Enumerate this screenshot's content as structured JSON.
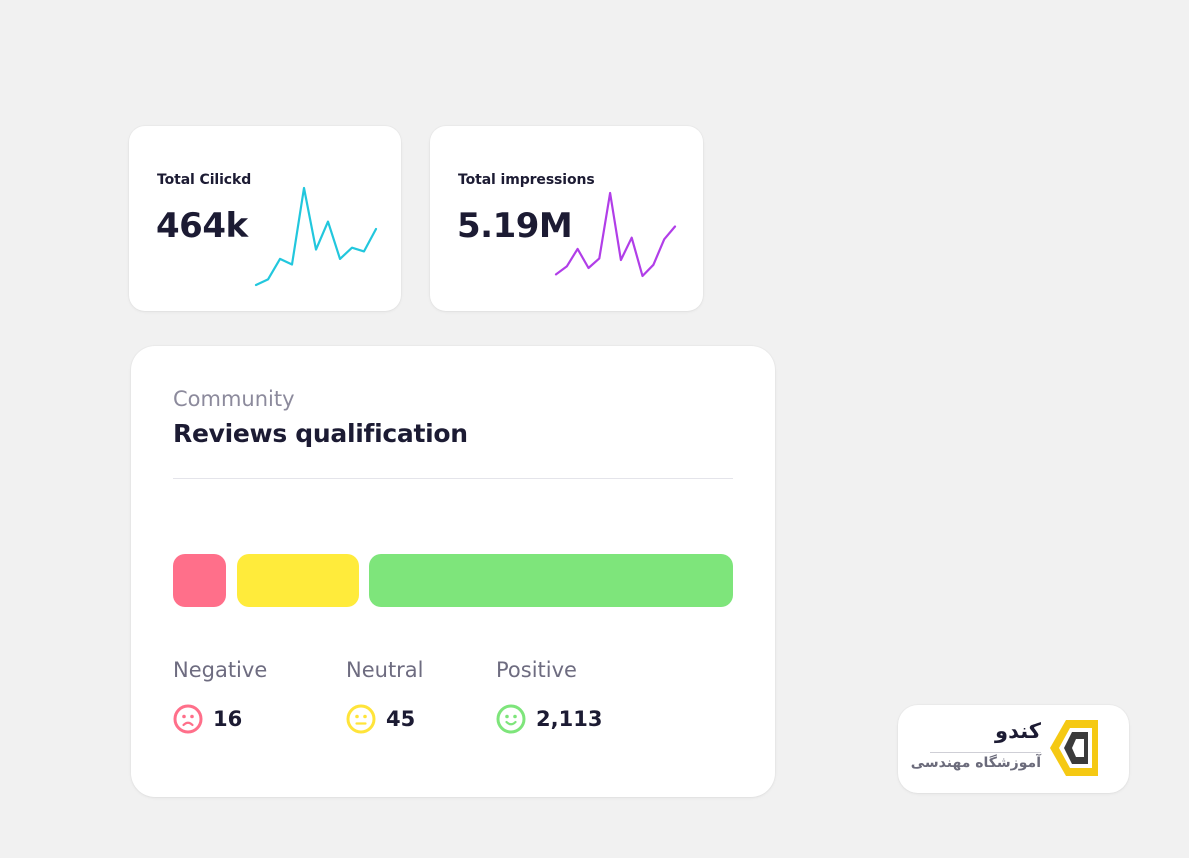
{
  "stats": {
    "clicks": {
      "label": "Total Cilickd",
      "value": "464k",
      "color": "#22c7dd",
      "sparkline": [
        4,
        7,
        18,
        15,
        56,
        23,
        38,
        18,
        24,
        22,
        34
      ]
    },
    "impressions": {
      "label": "Total impressions",
      "value": "5.19M",
      "color": "#b13ee8",
      "sparkline": [
        4,
        9,
        20,
        8,
        14,
        55,
        13,
        27,
        3,
        10,
        26,
        34
      ]
    }
  },
  "reviews": {
    "eyebrow": "Community",
    "title": "Reviews qualification",
    "segments": [
      {
        "key": "negative",
        "label": "Negative",
        "count": "16",
        "value": 16,
        "color": "#ff6f8a",
        "icon": "sad-face-icon"
      },
      {
        "key": "neutral",
        "label": "Neutral",
        "count": "45",
        "value": 45,
        "color": "#ffeb3b",
        "icon": "neutral-face-icon"
      },
      {
        "key": "positive",
        "label": "Positive",
        "count": "2,113",
        "value": 2113,
        "color": "#7ee57b",
        "icon": "happy-face-icon"
      }
    ]
  },
  "logo": {
    "name": "کندو",
    "subtitle": "آموزشگاه مهندسی",
    "accent_color": "#f5c913"
  }
}
